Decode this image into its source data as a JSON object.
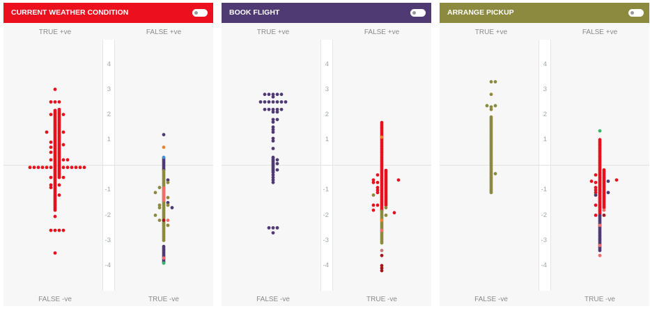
{
  "colors": {
    "red": "#e8101c",
    "purple": "#4f3a73",
    "olive": "#8b8a3e",
    "salmon": "#f36b6b",
    "orange": "#f0832a",
    "green": "#3bb56a",
    "darkred": "#a5161e",
    "rosy": "#c97a7a",
    "blue": "#4a90d9"
  },
  "panels": [
    {
      "title": "CURRENT WEATHER CONDITION",
      "color": "#ec0f1d",
      "labels": {
        "top_left": "TRUE +ve",
        "top_right": "FALSE +ve",
        "bottom_left": "FALSE -ve",
        "bottom_right": "TRUE -ve"
      },
      "ticks": [
        "4",
        "3",
        "2",
        "1",
        "-1",
        "-2",
        "-3",
        "-4"
      ]
    },
    {
      "title": "BOOK FLIGHT",
      "color": "#4f3a73",
      "labels": {
        "top_left": "TRUE +ve",
        "top_right": "FALSE +ve",
        "bottom_left": "FALSE -ve",
        "bottom_right": "TRUE -ve"
      },
      "ticks": [
        "4",
        "3",
        "2",
        "1",
        "-1",
        "-2",
        "-3",
        "-4"
      ]
    },
    {
      "title": "ARRANGE PICKUP",
      "color": "#8b8a3e",
      "labels": {
        "top_left": "TRUE +ve",
        "top_right": "FALSE +ve",
        "bottom_left": "FALSE -ve",
        "bottom_right": "TRUE -ve"
      },
      "ticks": [
        "4",
        "3",
        "2",
        "1",
        "-1",
        "-2",
        "-3",
        "-4"
      ]
    }
  ],
  "chart_data": [
    {
      "type": "scatter",
      "title": "CURRENT WEATHER CONDITION",
      "ylim": [
        -4.5,
        4.5
      ],
      "yticks": [
        4,
        3,
        2,
        1,
        -1,
        -2,
        -3,
        -4
      ],
      "clusters": [
        {
          "side": "left",
          "runs": [
            [
              0,
              -1.8,
              2.2,
              "red"
            ],
            [
              1,
              -0.5,
              2.2,
              "red"
            ]
          ],
          "points": [
            [
              0,
              3.0,
              "red"
            ],
            [
              -1,
              2.5,
              "red"
            ],
            [
              0,
              2.5,
              "red"
            ],
            [
              1,
              2.5,
              "red"
            ],
            [
              -1,
              2.0,
              "red"
            ],
            [
              2,
              2.0,
              "red"
            ],
            [
              -2,
              1.3,
              "red"
            ],
            [
              2,
              1.3,
              "red"
            ],
            [
              2,
              0.8,
              "red"
            ],
            [
              -1,
              0.9,
              "red"
            ],
            [
              -1,
              0.7,
              "red"
            ],
            [
              -1,
              0.5,
              "red"
            ],
            [
              -1,
              0.2,
              "red"
            ],
            [
              2,
              0.2,
              "red"
            ],
            [
              3,
              0.2,
              "red"
            ],
            [
              -1,
              -0.1,
              "red"
            ],
            [
              -1,
              -0.5,
              "red"
            ],
            [
              2,
              -0.5,
              "red"
            ],
            [
              -1,
              -0.9,
              "red"
            ],
            [
              -1,
              -0.8,
              "red"
            ],
            [
              1,
              -0.8,
              "red"
            ],
            [
              1,
              -1.2,
              "red"
            ],
            [
              0,
              -2.05,
              "red"
            ],
            [
              -1,
              -2.6,
              "red"
            ],
            [
              0,
              -2.6,
              "red"
            ],
            [
              1,
              -2.6,
              "red"
            ],
            [
              2,
              -2.6,
              "red"
            ],
            [
              0,
              -3.5,
              "red"
            ],
            [
              -6,
              -0.1,
              "red"
            ],
            [
              -5,
              -0.1,
              "red"
            ],
            [
              -4,
              -0.1,
              "red"
            ],
            [
              -3,
              -0.1,
              "red"
            ],
            [
              -2,
              -0.1,
              "red"
            ],
            [
              2,
              -0.1,
              "red"
            ],
            [
              3,
              -0.1,
              "red"
            ],
            [
              4,
              -0.1,
              "red"
            ],
            [
              5,
              -0.1,
              "red"
            ],
            [
              6,
              -0.1,
              "red"
            ],
            [
              7,
              -0.1,
              "red"
            ]
          ]
        },
        {
          "side": "right",
          "runs": [
            [
              0,
              -0.2,
              0.3,
              "purple"
            ],
            [
              0,
              -3.0,
              -0.2,
              "olive"
            ],
            [
              0,
              -1.4,
              -0.9,
              "salmon"
            ],
            [
              0,
              -3.9,
              -3.2,
              "purple"
            ]
          ],
          "points": [
            [
              0,
              1.2,
              "purple"
            ],
            [
              0,
              0.7,
              "orange"
            ],
            [
              0,
              0.3,
              "blue"
            ],
            [
              0,
              -3.9,
              "green"
            ],
            [
              0,
              -3.7,
              "salmon"
            ],
            [
              0,
              -2.2,
              "darkred"
            ],
            [
              1,
              -0.6,
              "purple"
            ],
            [
              1,
              -0.7,
              "olive"
            ],
            [
              -1,
              -0.9,
              "olive"
            ],
            [
              -2,
              -1.1,
              "olive"
            ],
            [
              1,
              -1.3,
              "olive"
            ],
            [
              1,
              -1.5,
              "purple"
            ],
            [
              1,
              -1.6,
              "olive"
            ],
            [
              -1,
              -1.6,
              "olive"
            ],
            [
              -1,
              -1.7,
              "olive"
            ],
            [
              2,
              -1.7,
              "purple"
            ],
            [
              -2,
              -2.0,
              "olive"
            ],
            [
              -1,
              -2.2,
              "olive"
            ],
            [
              1,
              -2.2,
              "salmon"
            ],
            [
              1,
              -2.4,
              "olive"
            ]
          ]
        }
      ]
    },
    {
      "type": "scatter",
      "title": "BOOK FLIGHT",
      "ylim": [
        -4.5,
        4.5
      ],
      "yticks": [
        4,
        3,
        2,
        1,
        -1,
        -2,
        -3,
        -4
      ],
      "clusters": [
        {
          "side": "left",
          "runs": [
            [
              0,
              -0.3,
              0.3,
              "purple"
            ]
          ],
          "points": [
            [
              -2,
              2.8,
              "purple"
            ],
            [
              -1,
              2.8,
              "purple"
            ],
            [
              0,
              2.8,
              "purple"
            ],
            [
              1,
              2.8,
              "purple"
            ],
            [
              2,
              2.8,
              "purple"
            ],
            [
              0,
              2.7,
              "purple"
            ],
            [
              -3,
              2.5,
              "purple"
            ],
            [
              -2,
              2.5,
              "purple"
            ],
            [
              -1,
              2.5,
              "purple"
            ],
            [
              0,
              2.5,
              "purple"
            ],
            [
              1,
              2.5,
              "purple"
            ],
            [
              2,
              2.5,
              "purple"
            ],
            [
              3,
              2.5,
              "purple"
            ],
            [
              -2,
              2.2,
              "purple"
            ],
            [
              -1,
              2.2,
              "purple"
            ],
            [
              0,
              2.2,
              "purple"
            ],
            [
              1,
              2.2,
              "purple"
            ],
            [
              2,
              2.2,
              "purple"
            ],
            [
              0,
              2.1,
              "purple"
            ],
            [
              1,
              2.1,
              "purple"
            ],
            [
              0,
              1.8,
              "purple"
            ],
            [
              1,
              1.8,
              "purple"
            ],
            [
              0,
              1.7,
              "purple"
            ],
            [
              0,
              1.5,
              "purple"
            ],
            [
              0,
              1.4,
              "purple"
            ],
            [
              0,
              1.3,
              "purple"
            ],
            [
              0,
              1.05,
              "purple"
            ],
            [
              0,
              0.95,
              "purple"
            ],
            [
              0,
              0.65,
              "purple"
            ],
            [
              1,
              0.2,
              "purple"
            ],
            [
              1,
              0.05,
              "purple"
            ],
            [
              1,
              -0.2,
              "purple"
            ],
            [
              0,
              -0.4,
              "purple"
            ],
            [
              0,
              -0.5,
              "purple"
            ],
            [
              0,
              -0.6,
              "purple"
            ],
            [
              0,
              -0.7,
              "purple"
            ],
            [
              -1,
              -2.5,
              "purple"
            ],
            [
              0,
              -2.5,
              "purple"
            ],
            [
              1,
              -2.5,
              "purple"
            ],
            [
              0,
              -2.7,
              "purple"
            ]
          ]
        },
        {
          "side": "right",
          "runs": [
            [
              0,
              -1.8,
              1.7,
              "red"
            ],
            [
              0,
              -3.1,
              -1.8,
              "olive"
            ],
            [
              1,
              -1.6,
              -0.2,
              "red"
            ]
          ],
          "points": [
            [
              0,
              -2.6,
              "salmon"
            ],
            [
              0,
              -2.2,
              "orange"
            ],
            [
              0,
              1.1,
              "orange"
            ],
            [
              0,
              -3.4,
              "rosy"
            ],
            [
              0,
              -3.6,
              "darkred"
            ],
            [
              0,
              -4.0,
              "darkred"
            ],
            [
              0,
              -4.1,
              "darkred"
            ],
            [
              0,
              -4.2,
              "darkred"
            ],
            [
              -1,
              -0.4,
              "red"
            ],
            [
              -1,
              -0.7,
              "red"
            ],
            [
              -1,
              -0.9,
              "red"
            ],
            [
              -1,
              -1.0,
              "red"
            ],
            [
              -1,
              -1.1,
              "red"
            ],
            [
              -1,
              -1.6,
              "red"
            ],
            [
              -2,
              -0.6,
              "red"
            ],
            [
              -2,
              -0.7,
              "red"
            ],
            [
              -2,
              -1.6,
              "red"
            ],
            [
              -2,
              -1.8,
              "red"
            ],
            [
              -2,
              -1.2,
              "olive"
            ],
            [
              1,
              -1.7,
              "olive"
            ],
            [
              1,
              -2.0,
              "olive"
            ],
            [
              3,
              -1.9,
              "red"
            ],
            [
              4,
              -0.6,
              "red"
            ]
          ]
        }
      ]
    },
    {
      "type": "scatter",
      "title": "ARRANGE PICKUP",
      "ylim": [
        -4.5,
        4.5
      ],
      "yticks": [
        4,
        3,
        2,
        1,
        -1,
        -2,
        -3,
        -4
      ],
      "clusters": [
        {
          "side": "left",
          "runs": [
            [
              0,
              -1.1,
              1.9,
              "olive"
            ]
          ],
          "points": [
            [
              0,
              3.3,
              "olive"
            ],
            [
              1,
              3.3,
              "olive"
            ],
            [
              0,
              2.8,
              "olive"
            ],
            [
              -1,
              2.35,
              "olive"
            ],
            [
              0,
              2.3,
              "olive"
            ],
            [
              1,
              2.35,
              "olive"
            ],
            [
              0,
              2.2,
              "olive"
            ],
            [
              1,
              -0.35,
              "olive"
            ]
          ]
        },
        {
          "side": "right",
          "runs": [
            [
              0,
              -2.0,
              1.0,
              "red"
            ],
            [
              0,
              -3.4,
              -2.0,
              "purple"
            ],
            [
              1,
              -1.7,
              -0.2,
              "red"
            ]
          ],
          "points": [
            [
              0,
              1.35,
              "green"
            ],
            [
              0,
              -3.6,
              "salmon"
            ],
            [
              0,
              -3.2,
              "salmon"
            ],
            [
              0,
              -2.4,
              "salmon"
            ],
            [
              -1,
              -0.4,
              "red"
            ],
            [
              -1,
              -0.7,
              "red"
            ],
            [
              -1,
              -0.9,
              "red"
            ],
            [
              -1,
              -1.0,
              "red"
            ],
            [
              -1,
              -1.1,
              "red"
            ],
            [
              -1,
              -1.2,
              "purple"
            ],
            [
              -1,
              -1.6,
              "red"
            ],
            [
              -1,
              -2.0,
              "red"
            ],
            [
              -2,
              -0.65,
              "red"
            ],
            [
              2,
              -0.65,
              "purple"
            ],
            [
              2,
              -1.1,
              "purple"
            ],
            [
              4,
              -0.6,
              "red"
            ],
            [
              1,
              -2.0,
              "darkred"
            ],
            [
              1,
              -1.8,
              "salmon"
            ]
          ]
        }
      ]
    }
  ]
}
